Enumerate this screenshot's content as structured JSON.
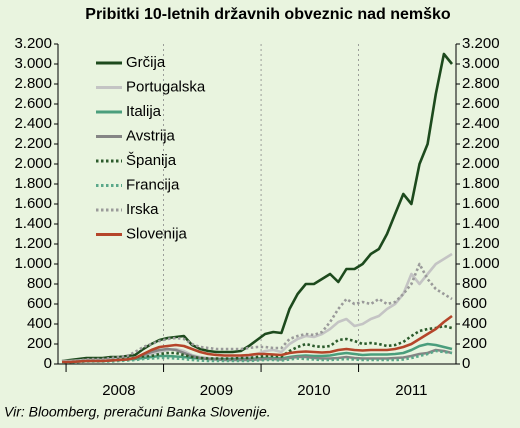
{
  "chart_data": {
    "type": "line",
    "title": "Pribitki 10-letnih državnih obveznic nad nemško",
    "source": "Vir: Bloomberg, preračuni Banka Slovenije.",
    "categories": [
      null,
      null,
      null,
      null,
      null,
      null,
      null,
      "2008",
      null,
      null,
      null,
      null,
      null,
      null,
      null,
      null,
      null,
      null,
      null,
      "2009",
      null,
      null,
      null,
      null,
      null,
      null,
      null,
      null,
      null,
      null,
      null,
      "2010",
      null,
      null,
      null,
      null,
      null,
      null,
      null,
      null,
      null,
      null,
      null,
      "2011",
      null,
      null,
      null,
      null,
      null
    ],
    "ylim": [
      0,
      3200
    ],
    "yticks": [
      0,
      200,
      400,
      600,
      800,
      {
        "value": 1000,
        "label": "1.000"
      },
      {
        "value": 1200,
        "label": "1.200"
      },
      {
        "value": 1400,
        "label": "1.400"
      },
      {
        "value": 1600,
        "label": "1.600"
      },
      {
        "value": 1800,
        "label": "1.800"
      },
      {
        "value": 2000,
        "label": "2.000"
      },
      {
        "value": 2200,
        "label": "2.200"
      },
      {
        "value": 2400,
        "label": "2.400"
      },
      {
        "value": 2600,
        "label": "2.600"
      },
      {
        "value": 2800,
        "label": "2.800"
      },
      {
        "value": 3000,
        "label": "3.000"
      },
      {
        "value": 3200,
        "label": "3.200"
      }
    ],
    "y2lim": [
      0,
      3200
    ],
    "y2ticks": [
      0,
      200,
      400,
      600,
      800,
      {
        "value": 1000,
        "label": "1.000"
      },
      {
        "value": 1200,
        "label": "1.200"
      },
      {
        "value": 1400,
        "label": "1.400"
      },
      {
        "value": 1600,
        "label": "1.600"
      },
      {
        "value": 1800,
        "label": "1.800"
      },
      {
        "value": 2000,
        "label": "2.000"
      },
      {
        "value": 2200,
        "label": "2.200"
      },
      {
        "value": 2400,
        "label": "2.400"
      },
      {
        "value": 2600,
        "label": "2.600"
      },
      {
        "value": 2800,
        "label": "2.800"
      },
      {
        "value": 3000,
        "label": "3.000"
      },
      {
        "value": 3200,
        "label": "3.200"
      }
    ],
    "legend": "upper left",
    "series": [
      {
        "name": "Grčija",
        "color": "#1d4a1d",
        "style": "solid",
        "values": [
          30,
          40,
          50,
          60,
          60,
          60,
          70,
          70,
          80,
          90,
          150,
          200,
          240,
          260,
          270,
          280,
          190,
          150,
          130,
          120,
          120,
          120,
          130,
          180,
          240,
          300,
          320,
          310,
          550,
          700,
          800,
          800,
          850,
          900,
          820,
          950,
          950,
          1000,
          1100,
          1150,
          1300,
          1500,
          1700,
          1600,
          2000,
          2200,
          2700,
          3100,
          3000
        ]
      },
      {
        "name": "Portugalska",
        "color": "#c4c4c4",
        "style": "solid",
        "values": [
          30,
          30,
          35,
          40,
          40,
          40,
          45,
          50,
          55,
          60,
          80,
          100,
          120,
          140,
          150,
          130,
          90,
          70,
          60,
          55,
          50,
          55,
          60,
          70,
          100,
          130,
          140,
          120,
          200,
          250,
          280,
          270,
          300,
          350,
          420,
          450,
          380,
          400,
          450,
          480,
          550,
          600,
          700,
          900,
          800,
          900,
          1000,
          1050,
          1100
        ]
      },
      {
        "name": "Italija",
        "color": "#4a9e7c",
        "style": "solid",
        "values": [
          20,
          20,
          25,
          30,
          30,
          30,
          35,
          40,
          45,
          50,
          60,
          70,
          80,
          80,
          75,
          70,
          60,
          55,
          50,
          50,
          50,
          50,
          50,
          50,
          55,
          60,
          60,
          55,
          70,
          80,
          85,
          80,
          80,
          85,
          100,
          110,
          100,
          90,
          95,
          95,
          95,
          100,
          110,
          140,
          180,
          200,
          190,
          170,
          150
        ]
      },
      {
        "name": "Avstrija",
        "color": "#858585",
        "style": "solid",
        "values": [
          20,
          20,
          25,
          30,
          30,
          30,
          35,
          40,
          45,
          60,
          90,
          120,
          140,
          150,
          140,
          110,
          80,
          60,
          50,
          45,
          40,
          40,
          40,
          40,
          45,
          50,
          50,
          45,
          60,
          70,
          70,
          60,
          55,
          55,
          60,
          70,
          60,
          55,
          55,
          55,
          55,
          60,
          65,
          80,
          100,
          110,
          140,
          130,
          110
        ]
      },
      {
        "name": "Španija",
        "color": "#2b5a2b",
        "style": "dotted",
        "values": [
          20,
          20,
          30,
          40,
          40,
          40,
          45,
          50,
          55,
          60,
          70,
          80,
          100,
          110,
          110,
          90,
          70,
          60,
          55,
          55,
          55,
          55,
          60,
          60,
          70,
          80,
          80,
          75,
          130,
          170,
          200,
          180,
          170,
          180,
          240,
          250,
          230,
          200,
          210,
          200,
          180,
          190,
          220,
          280,
          330,
          350,
          360,
          380,
          360
        ]
      },
      {
        "name": "Francija",
        "color": "#5aa88a",
        "style": "dotted",
        "values": [
          15,
          15,
          20,
          25,
          25,
          25,
          25,
          30,
          35,
          40,
          50,
          55,
          60,
          60,
          55,
          50,
          40,
          35,
          30,
          30,
          30,
          30,
          30,
          30,
          35,
          40,
          40,
          35,
          45,
          55,
          50,
          45,
          40,
          40,
          45,
          50,
          45,
          40,
          40,
          40,
          40,
          40,
          45,
          60,
          80,
          100,
          130,
          120,
          110
        ]
      },
      {
        "name": "Irska",
        "color": "#9a9a9a",
        "style": "dotted",
        "values": [
          25,
          25,
          35,
          45,
          50,
          50,
          60,
          70,
          80,
          120,
          170,
          200,
          230,
          250,
          260,
          250,
          200,
          170,
          160,
          150,
          150,
          150,
          150,
          160,
          170,
          170,
          160,
          160,
          250,
          280,
          300,
          290,
          320,
          420,
          550,
          650,
          600,
          620,
          600,
          650,
          600,
          620,
          700,
          800,
          1000,
          850,
          750,
          700,
          650
        ]
      },
      {
        "name": "Slovenija",
        "color": "#b5452a",
        "style": "solid",
        "values": [
          20,
          20,
          25,
          30,
          30,
          30,
          35,
          40,
          45,
          60,
          100,
          140,
          170,
          180,
          190,
          180,
          150,
          120,
          100,
          90,
          85,
          85,
          85,
          90,
          100,
          100,
          95,
          90,
          110,
          120,
          125,
          120,
          115,
          120,
          140,
          150,
          140,
          135,
          140,
          140,
          140,
          150,
          170,
          200,
          250,
          300,
          350,
          420,
          480
        ]
      }
    ]
  }
}
